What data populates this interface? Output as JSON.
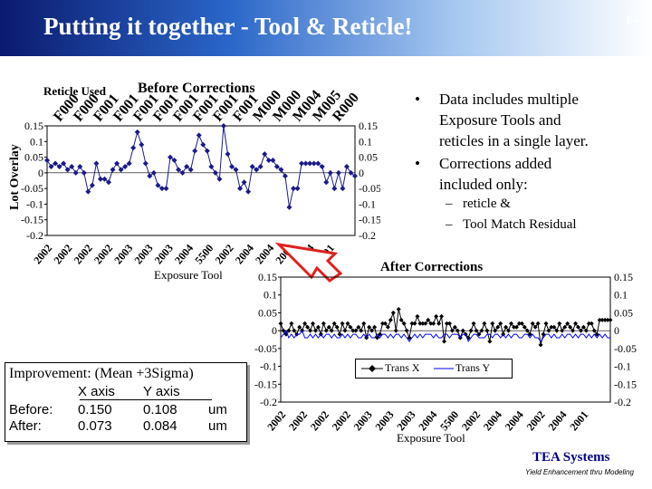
{
  "slide": {
    "title": "Putting it together - Tool & Reticle!",
    "page_number": "64"
  },
  "bullets": [
    {
      "text": "Data includes multiple Exposure Tools and reticles in a single layer.",
      "lines": [
        "Data includes multiple",
        "Exposure Tools and",
        "reticles in a single layer."
      ]
    },
    {
      "text": "Corrections added included only:",
      "lines": [
        "Corrections added",
        "included only:"
      ]
    }
  ],
  "sub_bullets": [
    "reticle &",
    "Tool Match Residual"
  ],
  "improvement": {
    "title": "Improvement: (Mean +3Sigma)",
    "col_x": "X axis",
    "col_y": "Y axis",
    "rows": [
      {
        "label": "Before:",
        "x": "0.150",
        "y": "0.108",
        "unit": "um"
      },
      {
        "label": "After:",
        "x": "0.073",
        "y": "0.084",
        "unit": "um"
      }
    ]
  },
  "footer": {
    "company": "TEA Systems",
    "tagline": "Yield Enhancement thru Modeling"
  },
  "chart_data": [
    {
      "type": "line",
      "title": "Before Corrections",
      "xlabel": "Exposure Tool",
      "ylabel": "Lot Overlay",
      "secondary_axis_label": "Reticle Used",
      "ylim": [
        -0.2,
        0.15
      ],
      "yticks": [
        "0.15",
        "0.1",
        "0.05",
        "0",
        "-0.05",
        "-0.1",
        "-0.15",
        "-0.2"
      ],
      "x_tick_labels": [
        "2002",
        "2002",
        "2002",
        "2002",
        "2003",
        "2003",
        "2003",
        "2004",
        "5500",
        "2002",
        "2004",
        "2004",
        "2002",
        "2004",
        "2001"
      ],
      "reticle_labels": [
        "F000",
        "F000",
        "F001",
        "F001",
        "F001",
        "F001",
        "F001",
        "F001",
        "F001",
        "F001",
        "M000",
        "M000",
        "M004",
        "M005",
        "R000"
      ],
      "grid": false,
      "legend": "none",
      "series": [
        {
          "values": [
            0.04,
            0.02,
            0.03,
            0.02,
            0.03,
            0.01,
            0.02,
            0.0,
            0.02,
            0.0,
            -0.06,
            -0.04,
            0.03,
            -0.02,
            -0.02,
            -0.03,
            0.01,
            0.03,
            0.01,
            0.02,
            0.03,
            0.08,
            0.13,
            0.09,
            0.03,
            -0.01,
            0.0,
            -0.04,
            -0.05,
            -0.05,
            0.05,
            0.04,
            0.01,
            0.0,
            0.02,
            0.01,
            0.07,
            0.12,
            0.09,
            0.07,
            0.02,
            0.0,
            -0.02,
            0.15,
            0.06,
            0.02,
            0.01,
            -0.05,
            -0.03,
            -0.06,
            0.02,
            0.01,
            0.02,
            0.06,
            0.04,
            0.04,
            0.02,
            0.01,
            -0.01,
            -0.11,
            -0.05,
            -0.05,
            0.03,
            0.03,
            0.03,
            0.03,
            0.03,
            0.02,
            -0.03,
            0.0,
            -0.05,
            0.0,
            -0.05,
            0.02,
            0.0,
            -0.01
          ]
        }
      ]
    },
    {
      "type": "line",
      "title": "After Corrections",
      "xlabel": "Exposure Tool",
      "ylim": [
        -0.2,
        0.15
      ],
      "yticks": [
        "0.15",
        "0.1",
        "0.05",
        "0",
        "-0.05",
        "-0.1",
        "-0.15",
        "-0.2"
      ],
      "x_tick_labels": [
        "2002",
        "2002",
        "2002",
        "2002",
        "2003",
        "2003",
        "2003",
        "2004",
        "5500",
        "2002",
        "2004",
        "2004",
        "2002",
        "2004",
        "2001"
      ],
      "grid": false,
      "legend": "bottom-center",
      "series": [
        {
          "name": "Trans X",
          "values": [
            0.02,
            0.0,
            -0.01,
            0.0,
            0.02,
            0.0,
            -0.01,
            0.01,
            0.0,
            0.02,
            0.01,
            0.0,
            0.02,
            0.0,
            0.01,
            -0.01,
            0.02,
            0.0,
            0.01,
            0.0,
            0.02,
            0.01,
            -0.01,
            0.02,
            0.0,
            0.02,
            0.01,
            0.0,
            0.0,
            0.01,
            0.0,
            0.02,
            -0.02,
            0.01,
            0.0,
            0.01,
            -0.02,
            -0.01,
            0.02,
            0.02,
            0.01,
            0.03,
            0.05,
            0.0,
            0.06,
            0.03,
            0.02,
            0.0,
            -0.02,
            0.02,
            0.02,
            0.04,
            0.02,
            0.02,
            0.02,
            0.03,
            0.02,
            0.02,
            0.04,
            0.02,
            0.04,
            -0.03,
            0.02,
            0.02,
            0.0,
            0.01,
            0.0,
            -0.02,
            0.0,
            -0.01,
            -0.02,
            0.0,
            0.02,
            0.0,
            -0.01,
            0.0,
            0.02,
            0.0,
            -0.03,
            0.02,
            0.0,
            0.01,
            0.02,
            -0.01,
            0.01,
            0.0,
            0.02,
            0.01,
            0.01,
            0.02,
            0.02,
            0.01,
            0.0,
            -0.01,
            0.02,
            0.01,
            0.02,
            -0.04,
            -0.01,
            0.02,
            0.0,
            0.01,
            0.01,
            0.0,
            0.02,
            0.0,
            0.01,
            0.02,
            0.01,
            0.0,
            0.02,
            0.01,
            0.0,
            0.01,
            0.0,
            0.02,
            0.02,
            0.0,
            -0.01,
            0.03,
            0.03,
            0.03,
            0.03,
            0.03
          ]
        },
        {
          "name": "Trans Y",
          "values": [
            -0.02,
            -0.01,
            0.0,
            -0.02,
            -0.01,
            -0.02,
            -0.01,
            -0.01,
            0.0,
            -0.02,
            -0.02,
            -0.01,
            -0.02,
            -0.01,
            -0.02,
            -0.01,
            -0.02,
            -0.01,
            -0.01,
            -0.02,
            -0.01,
            -0.02,
            -0.02,
            -0.01,
            -0.02,
            -0.01,
            -0.02,
            -0.01,
            -0.01,
            -0.02,
            -0.02,
            -0.01,
            -0.02,
            -0.01,
            -0.02,
            -0.02,
            -0.01,
            -0.02,
            -0.01,
            -0.01,
            -0.02,
            -0.01,
            -0.02,
            -0.01,
            -0.01,
            -0.02,
            -0.01,
            -0.02,
            -0.03,
            -0.02,
            -0.01,
            -0.02,
            -0.01,
            -0.02,
            -0.01,
            -0.01,
            -0.01,
            -0.02,
            -0.01,
            -0.02,
            -0.02,
            -0.01,
            -0.01,
            -0.02,
            -0.01,
            -0.01,
            -0.01,
            -0.02,
            -0.01,
            -0.01,
            -0.03,
            -0.02,
            -0.01,
            -0.01,
            -0.02,
            -0.02,
            -0.02,
            -0.01,
            -0.01,
            -0.02,
            -0.01,
            -0.01,
            -0.02,
            -0.01,
            -0.02,
            -0.01,
            -0.02,
            -0.01,
            -0.01,
            -0.02,
            -0.02,
            -0.01,
            -0.01,
            -0.02,
            -0.01,
            -0.02,
            -0.02,
            -0.03,
            -0.02,
            -0.01,
            -0.01,
            -0.02,
            -0.01,
            -0.02,
            -0.02,
            -0.01,
            -0.02,
            -0.01,
            -0.01,
            -0.02,
            -0.01,
            -0.02,
            -0.01,
            -0.01,
            -0.02,
            -0.01,
            -0.02,
            -0.01,
            -0.02,
            -0.01,
            -0.02,
            -0.01,
            -0.02,
            -0.02
          ]
        }
      ]
    }
  ]
}
